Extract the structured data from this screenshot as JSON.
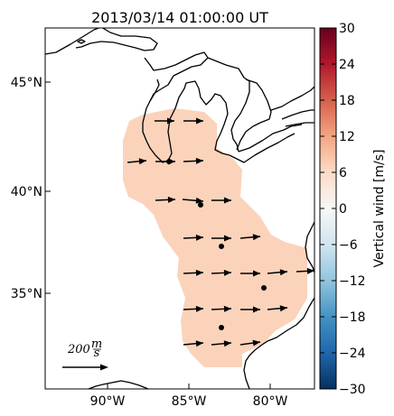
{
  "title": "2013/03/14 01:00:00 UT",
  "map": {
    "lat_labels": [
      "45°N",
      "40°N",
      "35°N"
    ],
    "lon_labels": [
      "90°W",
      "85°W",
      "80°W"
    ]
  },
  "scale_arrow": {
    "label": "200",
    "unit_top": "m",
    "unit_bottom": "s"
  },
  "colorbar": {
    "label": "Vertical wind [m/s]",
    "ticks": [
      "30",
      "24",
      "18",
      "12",
      "6",
      "0",
      "−6",
      "−12",
      "−18",
      "−24",
      "−30"
    ],
    "cmap": [
      "#67001f",
      "#b2182b",
      "#d6604d",
      "#f4a582",
      "#fddbc7",
      "#f7f7f7",
      "#d1e5f0",
      "#92c5de",
      "#4393c3",
      "#2166ac",
      "#053061"
    ],
    "region_fill_color": "#fbd3bb"
  },
  "colors": {
    "coast": "#000000",
    "arrow": "#000000",
    "dot": "#000000"
  }
}
